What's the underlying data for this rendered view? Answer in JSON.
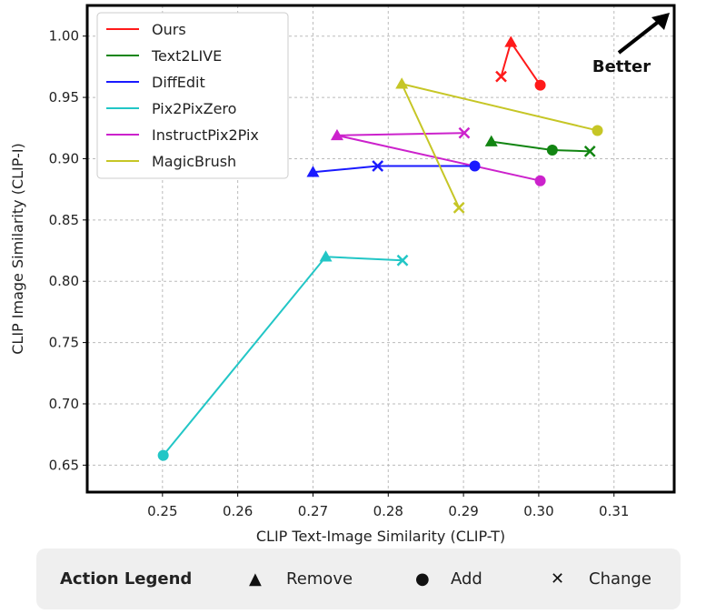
{
  "chart_data": {
    "type": "line",
    "xlabel": "CLIP Text-Image Similarity (CLIP-T)",
    "ylabel": "CLIP Image Similarity (CLIP-I)",
    "xlim": [
      0.24,
      0.318
    ],
    "ylim": [
      0.628,
      1.025
    ],
    "xticks": [
      "0.25",
      "0.26",
      "0.27",
      "0.28",
      "0.29",
      "0.30",
      "0.31"
    ],
    "xtick_values": [
      0.25,
      0.26,
      0.27,
      0.28,
      0.29,
      0.3,
      0.31
    ],
    "yticks": [
      "0.65",
      "0.70",
      "0.75",
      "0.80",
      "0.85",
      "0.90",
      "0.95",
      "1.00"
    ],
    "ytick_values": [
      0.65,
      0.7,
      0.75,
      0.8,
      0.85,
      0.9,
      0.95,
      1.0
    ],
    "grid": true,
    "legend_position": "top-left",
    "annotation": "Better",
    "series": [
      {
        "name": "Ours",
        "color": "#ff1a1a",
        "points": [
          {
            "action": "Change",
            "x": 0.295,
            "y": 0.967
          },
          {
            "action": "Remove",
            "x": 0.2963,
            "y": 0.995
          },
          {
            "action": "Add",
            "x": 0.3002,
            "y": 0.96
          }
        ]
      },
      {
        "name": "Text2LIVE",
        "color": "#128512",
        "points": [
          {
            "action": "Remove",
            "x": 0.2937,
            "y": 0.914
          },
          {
            "action": "Add",
            "x": 0.3018,
            "y": 0.907
          },
          {
            "action": "Change",
            "x": 0.3068,
            "y": 0.906
          }
        ]
      },
      {
        "name": "DiffEdit",
        "color": "#1a1aff",
        "points": [
          {
            "action": "Remove",
            "x": 0.27,
            "y": 0.889
          },
          {
            "action": "Change",
            "x": 0.2786,
            "y": 0.894
          },
          {
            "action": "Add",
            "x": 0.2915,
            "y": 0.894
          }
        ]
      },
      {
        "name": "Pix2PixZero",
        "color": "#22c6c6",
        "points": [
          {
            "action": "Add",
            "x": 0.2501,
            "y": 0.658
          },
          {
            "action": "Remove",
            "x": 0.2717,
            "y": 0.82
          },
          {
            "action": "Change",
            "x": 0.2819,
            "y": 0.817
          }
        ]
      },
      {
        "name": "InstructPix2Pix",
        "color": "#cc22cc",
        "points": [
          {
            "action": "Change",
            "x": 0.2901,
            "y": 0.921
          },
          {
            "action": "Remove",
            "x": 0.2732,
            "y": 0.919
          },
          {
            "action": "Add",
            "x": 0.3002,
            "y": 0.882
          }
        ]
      },
      {
        "name": "MagicBrush",
        "color": "#c6c626",
        "points": [
          {
            "action": "Change",
            "x": 0.2894,
            "y": 0.86
          },
          {
            "action": "Remove",
            "x": 0.2818,
            "y": 0.961
          },
          {
            "action": "Add",
            "x": 0.3078,
            "y": 0.923
          }
        ]
      }
    ]
  },
  "action_legend": {
    "title": "Action Legend",
    "items": [
      {
        "symbol": "▲",
        "label": "Remove"
      },
      {
        "symbol": "●",
        "label": "Add"
      },
      {
        "symbol": "✕",
        "label": "Change"
      }
    ]
  }
}
